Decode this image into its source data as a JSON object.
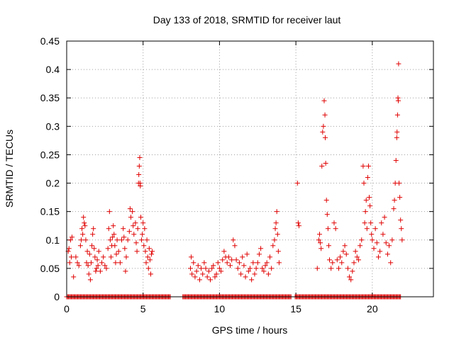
{
  "chart_data": {
    "type": "scatter",
    "title": "Day 133 of 2018, SRMTID for receiver laut",
    "xlabel": "GPS time / hours",
    "ylabel": "SRMTID / TECUs",
    "xlim": [
      0,
      24
    ],
    "ylim": [
      0,
      0.45
    ],
    "xticks": [
      0,
      5,
      10,
      15,
      20
    ],
    "xtick_labels": [
      "0",
      "5",
      "10",
      "15",
      "20"
    ],
    "yticks": [
      0,
      0.05,
      0.1,
      0.15,
      0.2,
      0.25,
      0.3,
      0.35,
      0.4,
      0.45
    ],
    "ytick_labels": [
      "0",
      "0.05",
      "0.1",
      "0.15",
      "0.2",
      "0.25",
      "0.3",
      "0.35",
      "0.4",
      "0.45"
    ],
    "grid": true,
    "marker": "+",
    "color": "#e00000",
    "series": [
      {
        "name": "SRMTID",
        "points": [
          [
            0.1,
            0.08
          ],
          [
            0.15,
            0.085
          ],
          [
            0.2,
            0.06
          ],
          [
            0.25,
            0.1
          ],
          [
            0.3,
            0.07
          ],
          [
            0.35,
            0.105
          ],
          [
            0.45,
            0.035
          ],
          [
            0.6,
            0.07
          ],
          [
            0.7,
            0.06
          ],
          [
            0.8,
            0.055
          ],
          [
            0.9,
            0.09
          ],
          [
            0.95,
            0.1
          ],
          [
            1.0,
            0.12
          ],
          [
            1.05,
            0.11
          ],
          [
            1.1,
            0.14
          ],
          [
            1.15,
            0.13
          ],
          [
            1.2,
            0.125
          ],
          [
            1.25,
            0.1
          ],
          [
            1.3,
            0.06
          ],
          [
            1.35,
            0.08
          ],
          [
            1.4,
            0.055
          ],
          [
            1.45,
            0.04
          ],
          [
            1.5,
            0.075
          ],
          [
            1.55,
            0.03
          ],
          [
            1.6,
            0.06
          ],
          [
            1.65,
            0.09
          ],
          [
            1.7,
            0.11
          ],
          [
            1.75,
            0.12
          ],
          [
            1.8,
            0.085
          ],
          [
            1.85,
            0.07
          ],
          [
            1.9,
            0.045
          ],
          [
            1.95,
            0.05
          ],
          [
            2.0,
            0.065
          ],
          [
            2.05,
            0.055
          ],
          [
            2.1,
            0.08
          ],
          [
            2.2,
            0.045
          ],
          [
            2.3,
            0.06
          ],
          [
            2.4,
            0.07
          ],
          [
            2.5,
            0.055
          ],
          [
            2.6,
            0.05
          ],
          [
            2.7,
            0.085
          ],
          [
            2.75,
            0.12
          ],
          [
            2.8,
            0.15
          ],
          [
            2.85,
            0.1
          ],
          [
            2.9,
            0.07
          ],
          [
            2.95,
            0.09
          ],
          [
            3.0,
            0.105
          ],
          [
            3.05,
            0.125
          ],
          [
            3.1,
            0.11
          ],
          [
            3.15,
            0.09
          ],
          [
            3.2,
            0.06
          ],
          [
            3.25,
            0.075
          ],
          [
            3.3,
            0.1
          ],
          [
            3.4,
            0.08
          ],
          [
            3.5,
            0.06
          ],
          [
            3.6,
            0.1
          ],
          [
            3.7,
            0.12
          ],
          [
            3.75,
            0.105
          ],
          [
            3.8,
            0.085
          ],
          [
            3.85,
            0.045
          ],
          [
            3.9,
            0.07
          ],
          [
            4.0,
            0.1
          ],
          [
            4.1,
            0.115
          ],
          [
            4.15,
            0.155
          ],
          [
            4.2,
            0.14
          ],
          [
            4.3,
            0.15
          ],
          [
            4.35,
            0.125
          ],
          [
            4.4,
            0.11
          ],
          [
            4.5,
            0.13
          ],
          [
            4.55,
            0.095
          ],
          [
            4.6,
            0.08
          ],
          [
            4.65,
            0.12
          ],
          [
            4.7,
            0.2
          ],
          [
            4.72,
            0.215
          ],
          [
            4.75,
            0.23
          ],
          [
            4.78,
            0.245
          ],
          [
            4.8,
            0.2
          ],
          [
            4.82,
            0.195
          ],
          [
            4.85,
            0.14
          ],
          [
            4.9,
            0.1
          ],
          [
            4.95,
            0.11
          ],
          [
            5.0,
            0.13
          ],
          [
            5.05,
            0.09
          ],
          [
            5.1,
            0.12
          ],
          [
            5.15,
            0.08
          ],
          [
            5.2,
            0.06
          ],
          [
            5.25,
            0.1
          ],
          [
            5.3,
            0.07
          ],
          [
            5.35,
            0.05
          ],
          [
            5.4,
            0.085
          ],
          [
            5.45,
            0.065
          ],
          [
            5.5,
            0.04
          ],
          [
            5.55,
            0.075
          ],
          [
            5.6,
            0.08
          ],
          [
            8.1,
            0.05
          ],
          [
            8.15,
            0.07
          ],
          [
            8.2,
            0.04
          ],
          [
            8.3,
            0.06
          ],
          [
            8.4,
            0.035
          ],
          [
            8.5,
            0.045
          ],
          [
            8.6,
            0.055
          ],
          [
            8.7,
            0.03
          ],
          [
            8.8,
            0.05
          ],
          [
            8.9,
            0.04
          ],
          [
            9.0,
            0.06
          ],
          [
            9.1,
            0.05
          ],
          [
            9.2,
            0.035
          ],
          [
            9.3,
            0.045
          ],
          [
            9.4,
            0.03
          ],
          [
            9.5,
            0.05
          ],
          [
            9.6,
            0.055
          ],
          [
            9.7,
            0.035
          ],
          [
            9.8,
            0.04
          ],
          [
            9.9,
            0.06
          ],
          [
            10.0,
            0.05
          ],
          [
            10.1,
            0.045
          ],
          [
            10.2,
            0.065
          ],
          [
            10.3,
            0.08
          ],
          [
            10.4,
            0.07
          ],
          [
            10.5,
            0.06
          ],
          [
            10.6,
            0.07
          ],
          [
            10.7,
            0.055
          ],
          [
            10.8,
            0.065
          ],
          [
            10.9,
            0.1
          ],
          [
            11.0,
            0.09
          ],
          [
            11.1,
            0.065
          ],
          [
            11.2,
            0.05
          ],
          [
            11.3,
            0.06
          ],
          [
            11.4,
            0.04
          ],
          [
            11.5,
            0.07
          ],
          [
            11.6,
            0.055
          ],
          [
            11.7,
            0.035
          ],
          [
            11.8,
            0.075
          ],
          [
            11.9,
            0.045
          ],
          [
            12.0,
            0.05
          ],
          [
            12.1,
            0.03
          ],
          [
            12.2,
            0.06
          ],
          [
            12.3,
            0.04
          ],
          [
            12.4,
            0.05
          ],
          [
            12.5,
            0.06
          ],
          [
            12.6,
            0.075
          ],
          [
            12.7,
            0.085
          ],
          [
            12.8,
            0.05
          ],
          [
            12.9,
            0.045
          ],
          [
            13.0,
            0.055
          ],
          [
            13.1,
            0.06
          ],
          [
            13.2,
            0.04
          ],
          [
            13.3,
            0.07
          ],
          [
            13.4,
            0.05
          ],
          [
            13.5,
            0.09
          ],
          [
            13.6,
            0.1
          ],
          [
            13.65,
            0.12
          ],
          [
            13.7,
            0.13
          ],
          [
            13.75,
            0.15
          ],
          [
            13.8,
            0.11
          ],
          [
            13.85,
            0.08
          ],
          [
            13.9,
            0.06
          ],
          [
            15.1,
            0.2
          ],
          [
            15.15,
            0.13
          ],
          [
            15.2,
            0.125
          ],
          [
            16.4,
            0.05
          ],
          [
            16.5,
            0.1
          ],
          [
            16.55,
            0.11
          ],
          [
            16.6,
            0.095
          ],
          [
            16.65,
            0.085
          ],
          [
            16.7,
            0.23
          ],
          [
            16.75,
            0.29
          ],
          [
            16.8,
            0.3
          ],
          [
            16.85,
            0.345
          ],
          [
            16.9,
            0.32
          ],
          [
            16.92,
            0.28
          ],
          [
            16.95,
            0.235
          ],
          [
            17.0,
            0.17
          ],
          [
            17.05,
            0.145
          ],
          [
            17.1,
            0.12
          ],
          [
            17.15,
            0.09
          ],
          [
            17.2,
            0.065
          ],
          [
            17.3,
            0.05
          ],
          [
            17.4,
            0.06
          ],
          [
            17.5,
            0.13
          ],
          [
            17.6,
            0.12
          ],
          [
            17.7,
            0.065
          ],
          [
            17.8,
            0.05
          ],
          [
            17.9,
            0.07
          ],
          [
            18.0,
            0.06
          ],
          [
            18.1,
            0.08
          ],
          [
            18.2,
            0.09
          ],
          [
            18.3,
            0.075
          ],
          [
            18.4,
            0.05
          ],
          [
            18.5,
            0.035
          ],
          [
            18.6,
            0.03
          ],
          [
            18.7,
            0.045
          ],
          [
            18.8,
            0.06
          ],
          [
            18.9,
            0.08
          ],
          [
            19.0,
            0.07
          ],
          [
            19.1,
            0.065
          ],
          [
            19.2,
            0.09
          ],
          [
            19.3,
            0.1
          ],
          [
            19.4,
            0.23
          ],
          [
            19.45,
            0.2
          ],
          [
            19.5,
            0.13
          ],
          [
            19.55,
            0.15
          ],
          [
            19.6,
            0.17
          ],
          [
            19.65,
            0.12
          ],
          [
            19.7,
            0.21
          ],
          [
            19.75,
            0.23
          ],
          [
            19.8,
            0.175
          ],
          [
            19.85,
            0.16
          ],
          [
            19.9,
            0.13
          ],
          [
            19.95,
            0.11
          ],
          [
            20.0,
            0.1
          ],
          [
            20.1,
            0.085
          ],
          [
            20.2,
            0.12
          ],
          [
            20.3,
            0.095
          ],
          [
            20.4,
            0.07
          ],
          [
            20.5,
            0.08
          ],
          [
            20.6,
            0.13
          ],
          [
            20.7,
            0.11
          ],
          [
            20.8,
            0.14
          ],
          [
            20.9,
            0.095
          ],
          [
            21.0,
            0.075
          ],
          [
            21.1,
            0.09
          ],
          [
            21.2,
            0.06
          ],
          [
            21.3,
            0.1
          ],
          [
            21.4,
            0.155
          ],
          [
            21.45,
            0.17
          ],
          [
            21.5,
            0.2
          ],
          [
            21.55,
            0.24
          ],
          [
            21.6,
            0.28
          ],
          [
            21.62,
            0.29
          ],
          [
            21.65,
            0.32
          ],
          [
            21.68,
            0.35
          ],
          [
            21.7,
            0.345
          ],
          [
            21.72,
            0.41
          ],
          [
            21.75,
            0.2
          ],
          [
            21.8,
            0.175
          ],
          [
            21.85,
            0.135
          ],
          [
            21.9,
            0.12
          ],
          [
            21.95,
            0.1
          ]
        ]
      }
    ],
    "zero_runs": [
      [
        0.0,
        6.8
      ],
      [
        7.6,
        14.7
      ],
      [
        14.95,
        21.9
      ]
    ]
  }
}
